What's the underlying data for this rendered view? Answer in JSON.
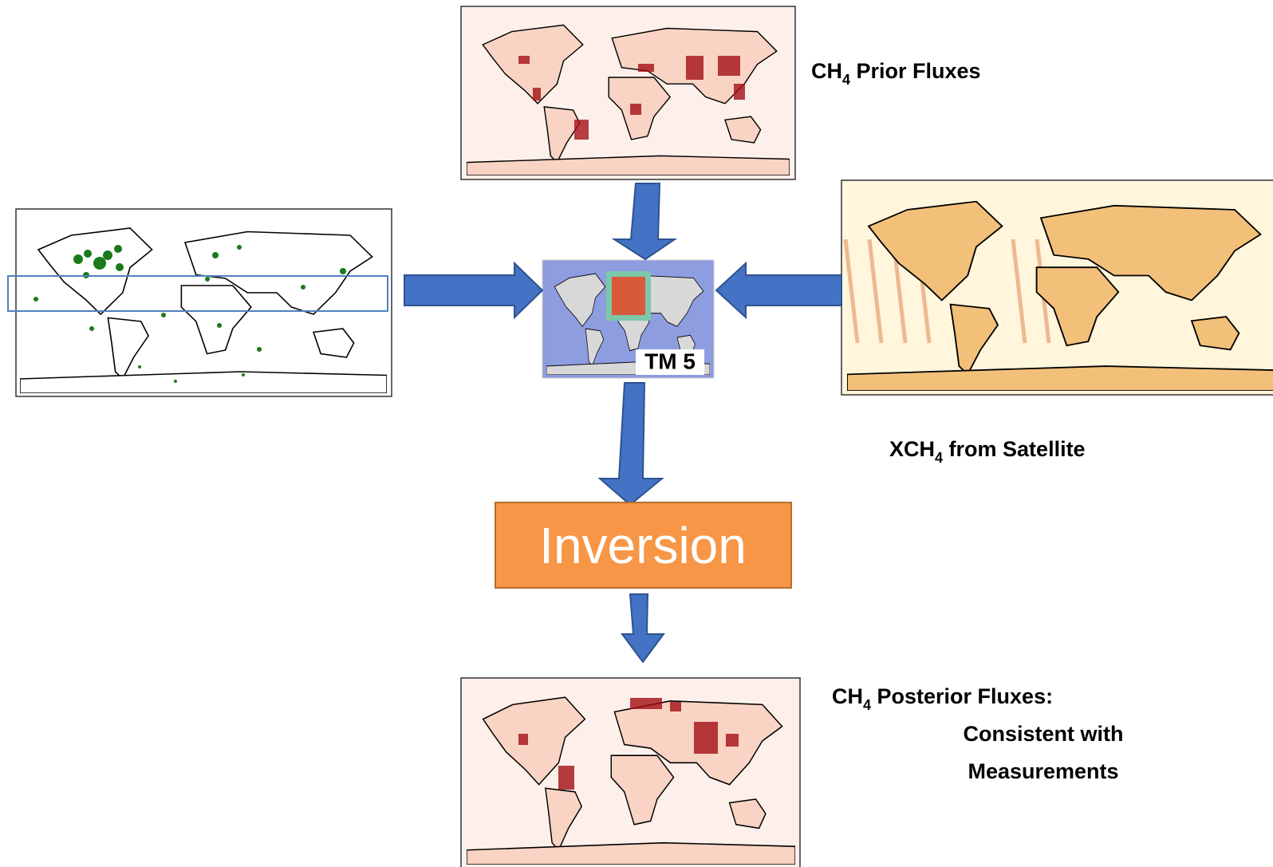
{
  "prior_label": {
    "main": "CH",
    "sub": "4",
    "rest": " Prior Fluxes"
  },
  "satellite_label": {
    "main": "XCH",
    "sub": "4",
    "rest": " from Satellite"
  },
  "posterior_label": {
    "main": "CH",
    "sub": "4",
    "rest": " Posterior Fluxes:",
    "lines": [
      "Consistent with",
      "Measurements"
    ]
  },
  "model_label": "TM 5",
  "inversion_label": "Inversion"
}
